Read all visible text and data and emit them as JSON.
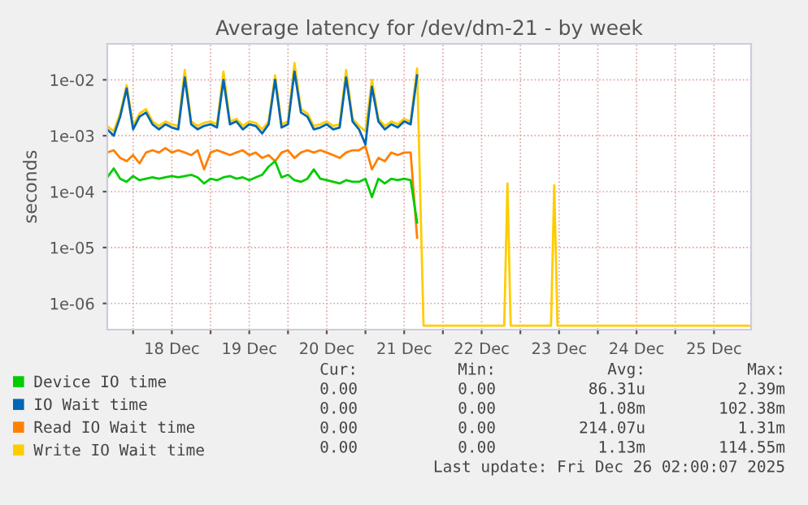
{
  "chart_data": {
    "type": "line",
    "title": "Average latency for /dev/dm-21 - by week",
    "ylabel": "seconds",
    "log": "y",
    "grid": true,
    "legend": "bottom left",
    "marker": "none",
    "line_style": "solid",
    "xlim": [
      "2025-12-17T16:00",
      "2025-12-25T23:30"
    ],
    "xticks": [
      {
        "value": "2025-12-18T00:00",
        "label": null
      },
      {
        "value": "2025-12-18T12:00",
        "label": "18 Dec"
      },
      {
        "value": "2025-12-19T00:00",
        "label": null
      },
      {
        "value": "2025-12-19T12:00",
        "label": "19 Dec"
      },
      {
        "value": "2025-12-20T00:00",
        "label": null
      },
      {
        "value": "2025-12-20T12:00",
        "label": "20 Dec"
      },
      {
        "value": "2025-12-21T00:00",
        "label": null
      },
      {
        "value": "2025-12-21T12:00",
        "label": "21 Dec"
      },
      {
        "value": "2025-12-22T00:00",
        "label": null
      },
      {
        "value": "2025-12-22T12:00",
        "label": "22 Dec"
      },
      {
        "value": "2025-12-23T00:00",
        "label": null
      },
      {
        "value": "2025-12-23T12:00",
        "label": "23 Dec"
      },
      {
        "value": "2025-12-24T00:00",
        "label": null
      },
      {
        "value": "2025-12-24T12:00",
        "label": "24 Dec"
      },
      {
        "value": "2025-12-25T00:00",
        "label": null
      },
      {
        "value": "2025-12-25T12:00",
        "label": "25 Dec"
      }
    ],
    "ylim": [
      3.4e-07,
      0.044
    ],
    "yticks": [
      {
        "value": 1e-06,
        "label": "1e-06"
      },
      {
        "value": 1e-05,
        "label": "1e-05"
      },
      {
        "value": 0.0001,
        "label": "1e-04"
      },
      {
        "value": 0.001,
        "label": "1e-03"
      },
      {
        "value": 0.01,
        "label": "1e-02"
      }
    ],
    "x": [
      "2025-12-17T16:00",
      "2025-12-17T18:00",
      "2025-12-17T20:00",
      "2025-12-17T22:00",
      "2025-12-18T00:00",
      "2025-12-18T02:00",
      "2025-12-18T04:00",
      "2025-12-18T06:00",
      "2025-12-18T08:00",
      "2025-12-18T10:00",
      "2025-12-18T12:00",
      "2025-12-18T14:00",
      "2025-12-18T16:00",
      "2025-12-18T18:00",
      "2025-12-18T20:00",
      "2025-12-18T22:00",
      "2025-12-19T00:00",
      "2025-12-19T02:00",
      "2025-12-19T04:00",
      "2025-12-19T06:00",
      "2025-12-19T08:00",
      "2025-12-19T10:00",
      "2025-12-19T12:00",
      "2025-12-19T14:00",
      "2025-12-19T16:00",
      "2025-12-19T18:00",
      "2025-12-19T20:00",
      "2025-12-19T22:00",
      "2025-12-20T00:00",
      "2025-12-20T02:00",
      "2025-12-20T04:00",
      "2025-12-20T06:00",
      "2025-12-20T08:00",
      "2025-12-20T10:00",
      "2025-12-20T12:00",
      "2025-12-20T14:00",
      "2025-12-20T16:00",
      "2025-12-20T18:00",
      "2025-12-20T20:00",
      "2025-12-20T22:00",
      "2025-12-21T00:00",
      "2025-12-21T02:00",
      "2025-12-21T04:00",
      "2025-12-21T06:00",
      "2025-12-21T08:00",
      "2025-12-21T10:00",
      "2025-12-21T12:00",
      "2025-12-21T14:00",
      "2025-12-21T16:00"
    ],
    "series": [
      {
        "name": "Device IO time",
        "color": "#00cc00",
        "values": [
          0.00018,
          0.00026,
          0.00017,
          0.00015,
          0.00019,
          0.00016,
          0.00017,
          0.00018,
          0.00017,
          0.00018,
          0.00019,
          0.00018,
          0.00019,
          0.0002,
          0.00018,
          0.00014,
          0.00017,
          0.00016,
          0.00018,
          0.00019,
          0.00017,
          0.00018,
          0.00016,
          0.00018,
          0.0002,
          0.00028,
          0.00035,
          0.00018,
          0.0002,
          0.00016,
          0.00015,
          0.00017,
          0.00025,
          0.00017,
          0.00016,
          0.00015,
          0.00014,
          0.00016,
          0.00015,
          0.00015,
          0.00017,
          8e-05,
          0.00017,
          0.00014,
          0.00017,
          0.00016,
          0.00017,
          0.00016,
          2.8e-05
        ]
      },
      {
        "name": "IO Wait time",
        "color": "#0066b3",
        "values": [
          0.0013,
          0.001,
          0.0022,
          0.007,
          0.0013,
          0.0022,
          0.0026,
          0.0016,
          0.0013,
          0.0016,
          0.0014,
          0.0013,
          0.011,
          0.0016,
          0.0013,
          0.0015,
          0.0016,
          0.0014,
          0.01,
          0.0016,
          0.0018,
          0.0013,
          0.0016,
          0.0015,
          0.0011,
          0.0016,
          0.01,
          0.0014,
          0.0016,
          0.014,
          0.0026,
          0.0022,
          0.0013,
          0.0014,
          0.0016,
          0.0013,
          0.0014,
          0.011,
          0.0018,
          0.0013,
          0.0007,
          0.0075,
          0.0018,
          0.0013,
          0.0016,
          0.0014,
          0.0018,
          0.0016,
          0.012
        ]
      },
      {
        "name": "Read IO Wait time",
        "color": "#ff8000",
        "values": [
          0.0005,
          0.00055,
          0.0004,
          0.00035,
          0.00045,
          0.00032,
          0.0005,
          0.00055,
          0.0005,
          0.0006,
          0.0005,
          0.00055,
          0.0005,
          0.00045,
          0.00055,
          0.00025,
          0.0005,
          0.00055,
          0.0005,
          0.00045,
          0.0005,
          0.00055,
          0.00045,
          0.0005,
          0.0004,
          0.00045,
          0.00035,
          0.0005,
          0.00055,
          0.0004,
          0.0005,
          0.00055,
          0.0005,
          0.00055,
          0.0005,
          0.00045,
          0.0004,
          0.0005,
          0.00055,
          0.00055,
          0.00065,
          0.00025,
          0.0004,
          0.00035,
          0.0005,
          0.00045,
          0.0005,
          0.0005,
          1.5e-05
        ]
      },
      {
        "name": "Write IO Wait time",
        "color": "#ffcc00",
        "x": [
          "2025-12-17T16:00",
          "2025-12-17T18:00",
          "2025-12-17T20:00",
          "2025-12-17T22:00",
          "2025-12-18T00:00",
          "2025-12-18T02:00",
          "2025-12-18T04:00",
          "2025-12-18T06:00",
          "2025-12-18T08:00",
          "2025-12-18T10:00",
          "2025-12-18T12:00",
          "2025-12-18T14:00",
          "2025-12-18T16:00",
          "2025-12-18T18:00",
          "2025-12-18T20:00",
          "2025-12-18T22:00",
          "2025-12-19T00:00",
          "2025-12-19T02:00",
          "2025-12-19T04:00",
          "2025-12-19T06:00",
          "2025-12-19T08:00",
          "2025-12-19T10:00",
          "2025-12-19T12:00",
          "2025-12-19T14:00",
          "2025-12-19T16:00",
          "2025-12-19T18:00",
          "2025-12-19T20:00",
          "2025-12-19T22:00",
          "2025-12-20T00:00",
          "2025-12-20T02:00",
          "2025-12-20T04:00",
          "2025-12-20T06:00",
          "2025-12-20T08:00",
          "2025-12-20T10:00",
          "2025-12-20T12:00",
          "2025-12-20T14:00",
          "2025-12-20T16:00",
          "2025-12-20T18:00",
          "2025-12-20T20:00",
          "2025-12-20T22:00",
          "2025-12-21T00:00",
          "2025-12-21T02:00",
          "2025-12-21T04:00",
          "2025-12-21T06:00",
          "2025-12-21T08:00",
          "2025-12-21T10:00",
          "2025-12-21T12:00",
          "2025-12-21T14:00",
          "2025-12-21T16:00",
          "2025-12-21T18:00",
          "2025-12-22T19:00",
          "2025-12-22T20:00",
          "2025-12-22T21:00",
          "2025-12-23T09:30",
          "2025-12-23T10:30",
          "2025-12-23T11:30",
          "2025-12-25T23:30"
        ],
        "values": [
          0.0015,
          0.0012,
          0.0025,
          0.008,
          0.0015,
          0.0025,
          0.003,
          0.0018,
          0.0015,
          0.0018,
          0.0016,
          0.0015,
          0.015,
          0.0018,
          0.0015,
          0.0017,
          0.0018,
          0.0016,
          0.014,
          0.0018,
          0.002,
          0.0015,
          0.0018,
          0.0017,
          0.0013,
          0.0018,
          0.012,
          0.0016,
          0.0018,
          0.02,
          0.003,
          0.0025,
          0.0015,
          0.0016,
          0.0018,
          0.0015,
          0.0016,
          0.015,
          0.002,
          0.0015,
          0.0012,
          0.01,
          0.002,
          0.0015,
          0.0018,
          0.0016,
          0.002,
          0.0018,
          0.016,
          4e-07,
          4e-07,
          0.00014,
          4e-07,
          4e-07,
          0.00013,
          4e-07,
          4e-07
        ]
      }
    ],
    "annotations": [
      "Cur:",
      "Min:",
      "Avg:",
      "Max:",
      "0.00",
      "0.00",
      "86.31u",
      "2.39m",
      "0.00",
      "0.00",
      "1.08m",
      "102.38m",
      "0.00",
      "0.00",
      "214.07u",
      "1.31m",
      "0.00",
      "0.00",
      "1.13m",
      "114.55m",
      "Last update: Fri Dec 26 02:00:07 2025"
    ]
  }
}
